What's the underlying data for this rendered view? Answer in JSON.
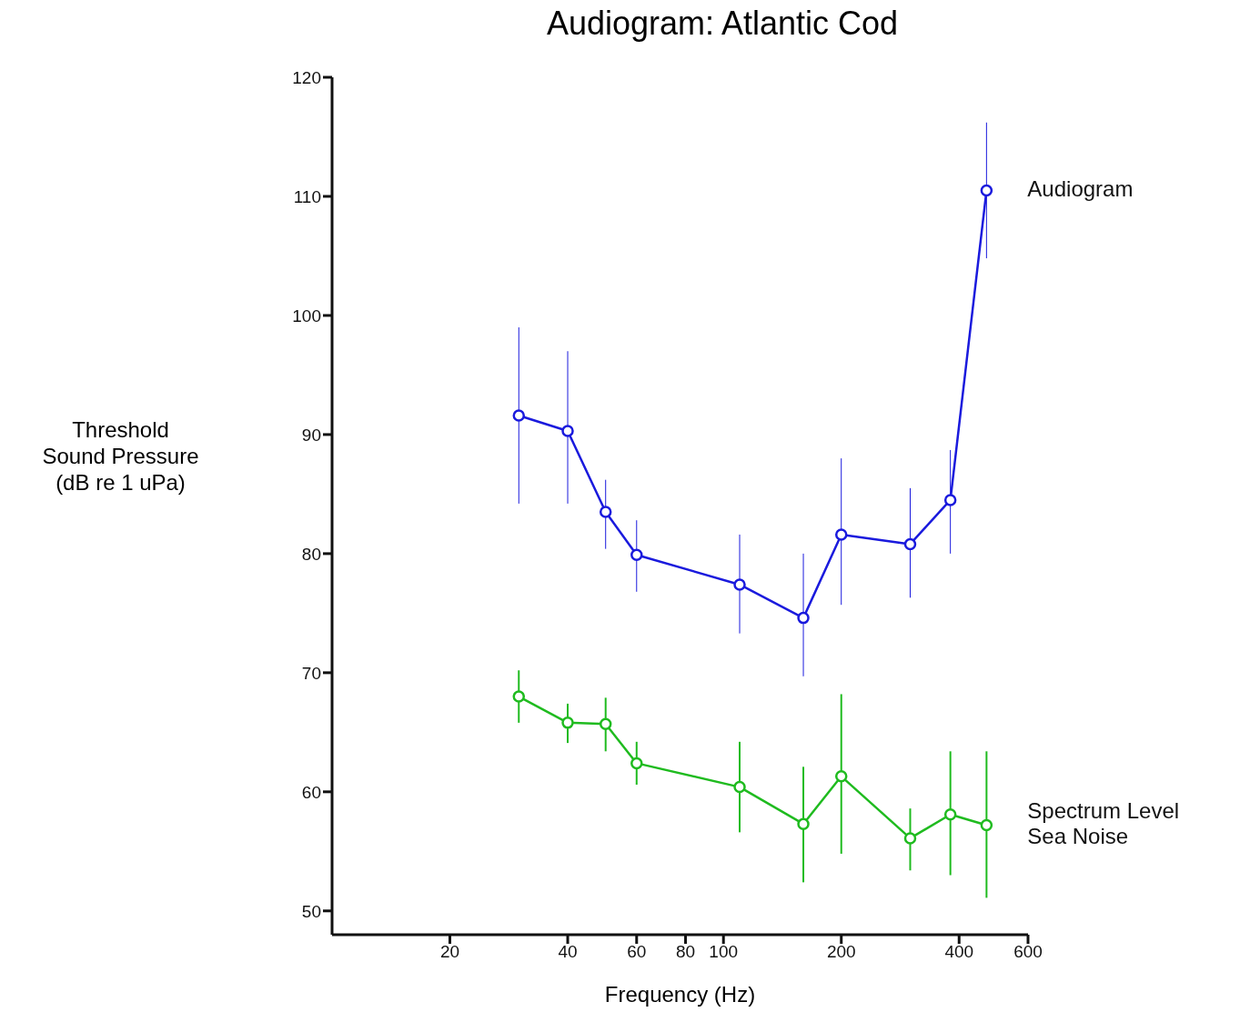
{
  "chart_data": {
    "type": "line",
    "title": "Audiogram: Atlantic Cod",
    "xlabel": "Frequency (Hz)",
    "ylabel": "Threshold\nSound Pressure\n(dB re 1 uPa)",
    "x": [
      30,
      40,
      50,
      60,
      110,
      160,
      200,
      300,
      380,
      470
    ],
    "series": [
      {
        "name": "Audiogram",
        "color": "#1a1add",
        "values": [
          91.6,
          90.3,
          83.5,
          79.9,
          77.4,
          74.6,
          81.6,
          80.8,
          84.5,
          110.5
        ],
        "errors": [
          [
            84.2,
            99.0
          ],
          [
            84.2,
            97.0
          ],
          [
            80.4,
            86.2
          ],
          [
            76.8,
            82.8
          ],
          [
            73.3,
            81.6
          ],
          [
            69.7,
            80.0
          ],
          [
            75.7,
            88.0
          ],
          [
            76.3,
            85.5
          ],
          [
            80.0,
            88.7
          ],
          [
            104.8,
            116.2
          ]
        ]
      },
      {
        "name": "Spectrum Level Sea Noise",
        "color": "#1fbb1f",
        "values": [
          68.0,
          65.8,
          65.7,
          62.4,
          60.4,
          57.3,
          61.3,
          56.1,
          58.1,
          57.2
        ],
        "errors": [
          [
            65.8,
            70.2
          ],
          [
            64.1,
            67.4
          ],
          [
            63.4,
            67.9
          ],
          [
            60.6,
            64.2
          ],
          [
            56.6,
            64.2
          ],
          [
            52.4,
            62.1
          ],
          [
            54.8,
            68.2
          ],
          [
            53.4,
            58.6
          ],
          [
            53.0,
            63.4
          ],
          [
            51.1,
            63.4
          ]
        ]
      }
    ],
    "log": "x",
    "xlim": [
      10,
      600
    ],
    "xticks": [
      20,
      40,
      60,
      80,
      100,
      200,
      400,
      600
    ],
    "ylim": [
      48,
      120
    ],
    "yticks": [
      50,
      60,
      70,
      80,
      90,
      100,
      110,
      120
    ],
    "marker": "circle",
    "line_style": "solid",
    "legend": false,
    "grid": false
  }
}
